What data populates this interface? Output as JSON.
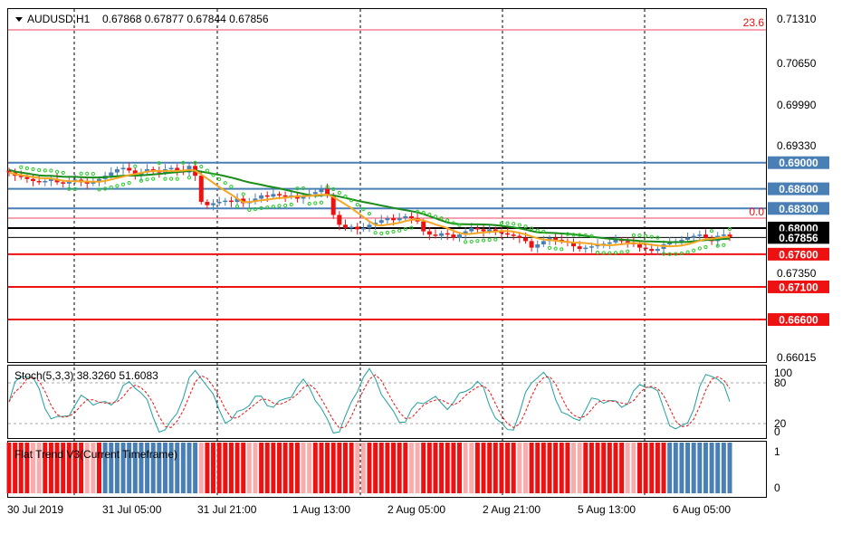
{
  "header": {
    "symbol": "AUDUSD,H1",
    "ohlc": "0.67868 0.67877 0.67844 0.67856"
  },
  "fib_labels": [
    "23.6",
    "0.0"
  ],
  "colors": {
    "bull": "#4a7fb5",
    "bear": "#ee1111",
    "ma_fast": "#f5a623",
    "ma_slow": "#1a8c1a",
    "psar": "#22cc22",
    "stoch_main": "#20a0a0",
    "stoch_signal": "#ee1111"
  },
  "price_axis": {
    "ticks": [
      "0.71310",
      "0.70650",
      "0.69990",
      "0.69330",
      "0.67350",
      "0.66015"
    ],
    "levels": [
      {
        "label": "0.69000",
        "value": 0.69,
        "color": "#4a7fb5"
      },
      {
        "label": "0.68600",
        "value": 0.686,
        "color": "#4a7fb5"
      },
      {
        "label": "0.68300",
        "value": 0.683,
        "color": "#4a7fb5"
      },
      {
        "label": "0.68000",
        "value": 0.68,
        "color": "#000000"
      },
      {
        "label": "0.67856",
        "value": 0.67856,
        "color": "#000000"
      },
      {
        "label": "0.67600",
        "value": 0.676,
        "color": "#ee1111"
      },
      {
        "label": "0.67100",
        "value": 0.671,
        "color": "#ee1111"
      },
      {
        "label": "0.66600",
        "value": 0.666,
        "color": "#ee1111"
      }
    ]
  },
  "stoch": {
    "label": "Stoch(5,3,3) 38.3260 51.6083",
    "ticks": [
      "100",
      "80",
      "20",
      "0"
    ]
  },
  "flat_trend": {
    "label": "Flat Trend V3(Current Timeframe)",
    "ticks": [
      "1",
      "0"
    ]
  },
  "x_axis": {
    "labels": [
      "30 Jul 2019",
      "31 Jul 05:00",
      "31 Jul 21:00",
      "1 Aug 13:00",
      "2 Aug 05:00",
      "2 Aug 21:00",
      "5 Aug 13:00",
      "6 Aug 05:00"
    ]
  },
  "chart_data": {
    "type": "candlestick",
    "symbol": "AUDUSD",
    "timeframe": "H1",
    "ylim": [
      0.6595,
      0.7135
    ],
    "horizontal_levels": [
      0.69,
      0.686,
      0.683,
      0.68,
      0.67856,
      0.676,
      0.671,
      0.666
    ],
    "close": [
      0.6885,
      0.688,
      0.6878,
      0.6875,
      0.6872,
      0.687,
      0.6872,
      0.6875,
      0.687,
      0.6868,
      0.6872,
      0.6874,
      0.687,
      0.6868,
      0.687,
      0.6875,
      0.688,
      0.6885,
      0.689,
      0.6892,
      0.6888,
      0.688,
      0.6885,
      0.689,
      0.6888,
      0.6885,
      0.689,
      0.6892,
      0.6888,
      0.6885,
      0.6895,
      0.688,
      0.684,
      0.6835,
      0.6838,
      0.684,
      0.6842,
      0.684,
      0.6845,
      0.6838,
      0.684,
      0.6845,
      0.685,
      0.6848,
      0.6852,
      0.685,
      0.6848,
      0.685,
      0.6845,
      0.6848,
      0.6852,
      0.6855,
      0.686,
      0.685,
      0.682,
      0.6805,
      0.68,
      0.6802,
      0.6798,
      0.68,
      0.6805,
      0.6808,
      0.6812,
      0.6815,
      0.6812,
      0.6815,
      0.6818,
      0.6815,
      0.681,
      0.6795,
      0.679,
      0.6788,
      0.6792,
      0.679,
      0.6785,
      0.679,
      0.6795,
      0.68,
      0.6798,
      0.6795,
      0.6798,
      0.6795,
      0.6792,
      0.679,
      0.6788,
      0.6785,
      0.678,
      0.677,
      0.6775,
      0.678,
      0.6785,
      0.6782,
      0.678,
      0.6778,
      0.6772,
      0.6768,
      0.677,
      0.6772,
      0.6775,
      0.6776,
      0.6778,
      0.6782,
      0.678,
      0.6778,
      0.6775,
      0.677,
      0.6768,
      0.6765,
      0.6768,
      0.6775,
      0.6778,
      0.678,
      0.6782,
      0.6785,
      0.6788,
      0.679,
      0.6785,
      0.678,
      0.6788,
      0.679,
      0.6786
    ]
  }
}
